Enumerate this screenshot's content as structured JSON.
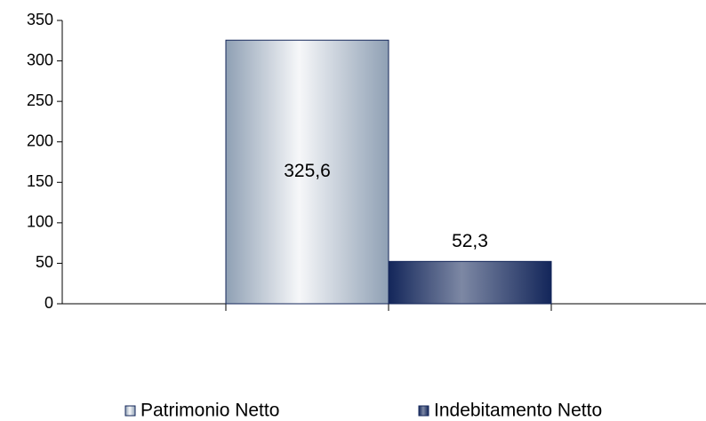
{
  "chart_data": {
    "type": "bar",
    "categories": [
      null
    ],
    "series": [
      {
        "name": "Patrimonio Netto",
        "color": "#8fa0b4",
        "values": [
          325.6
        ],
        "value_labels": [
          "325,6"
        ]
      },
      {
        "name": "Indebitamento Netto",
        "color": "#13265a",
        "values": [
          52.3
        ],
        "value_labels": [
          "52,3"
        ]
      }
    ],
    "ylim": [
      0,
      350
    ],
    "yticks": [
      0,
      50,
      100,
      150,
      200,
      250,
      300,
      350
    ],
    "grid": false
  }
}
